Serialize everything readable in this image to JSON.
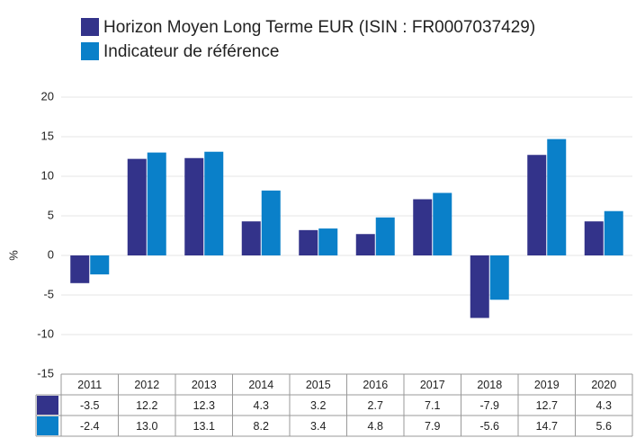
{
  "chart_data": {
    "type": "bar",
    "ylabel": "%",
    "categories": [
      "2011",
      "2012",
      "2013",
      "2014",
      "2015",
      "2016",
      "2017",
      "2018",
      "2019",
      "2020"
    ],
    "series": [
      {
        "name": "Horizon Moyen Long Terme EUR (ISIN : FR0007037429)",
        "color": "#33338a",
        "values": [
          -3.5,
          12.2,
          12.3,
          4.3,
          3.2,
          2.7,
          7.1,
          -7.9,
          12.7,
          4.3
        ],
        "value_labels": [
          "-3.5",
          "12.2",
          "12.3",
          "4.3",
          "3.2",
          "2.7",
          "7.1",
          "-7.9",
          "12.7",
          "4.3"
        ]
      },
      {
        "name": "Indicateur de référence",
        "color": "#0a80c9",
        "values": [
          -2.4,
          13,
          13.1,
          8.2,
          3.4,
          4.8,
          7.9,
          -5.6,
          14.7,
          5.6
        ],
        "value_labels": [
          "-2.4",
          "13.0",
          "13.1",
          "8.2",
          "3.4",
          "4.8",
          "7.9",
          "-5.6",
          "14.7",
          "5.6"
        ]
      }
    ],
    "ylim": [
      -15,
      20
    ],
    "yticks": [
      -15,
      -10,
      -5,
      0,
      5,
      10,
      15,
      20
    ],
    "grid": true,
    "legend": "top"
  }
}
